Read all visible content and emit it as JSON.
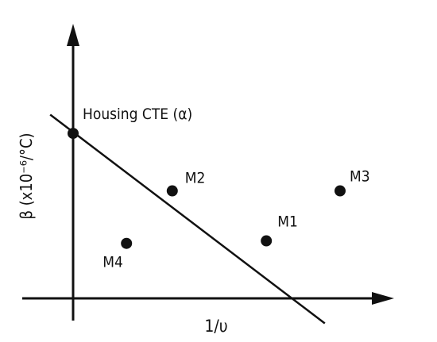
{
  "chart_data": {
    "type": "scatter",
    "title": "",
    "xlabel": "1/υ",
    "ylabel": "β (x10⁻⁶/°C)",
    "axis_ticks": "none",
    "grid": false,
    "colors": {
      "ink": "#111111",
      "background": "#ffffff"
    },
    "points": [
      {
        "label": "Housing CTE (α)",
        "x": 0.0,
        "y": 6.6
      },
      {
        "label": "M2",
        "x": 1.95,
        "y": 4.3
      },
      {
        "label": "M1",
        "x": 3.8,
        "y": 2.3
      },
      {
        "label": "M3",
        "x": 5.25,
        "y": 4.3
      },
      {
        "label": "M4",
        "x": 1.05,
        "y": 2.2
      }
    ],
    "trend_line": {
      "x": [
        -0.45,
        4.95
      ],
      "y": [
        7.35,
        -1.0
      ]
    }
  }
}
